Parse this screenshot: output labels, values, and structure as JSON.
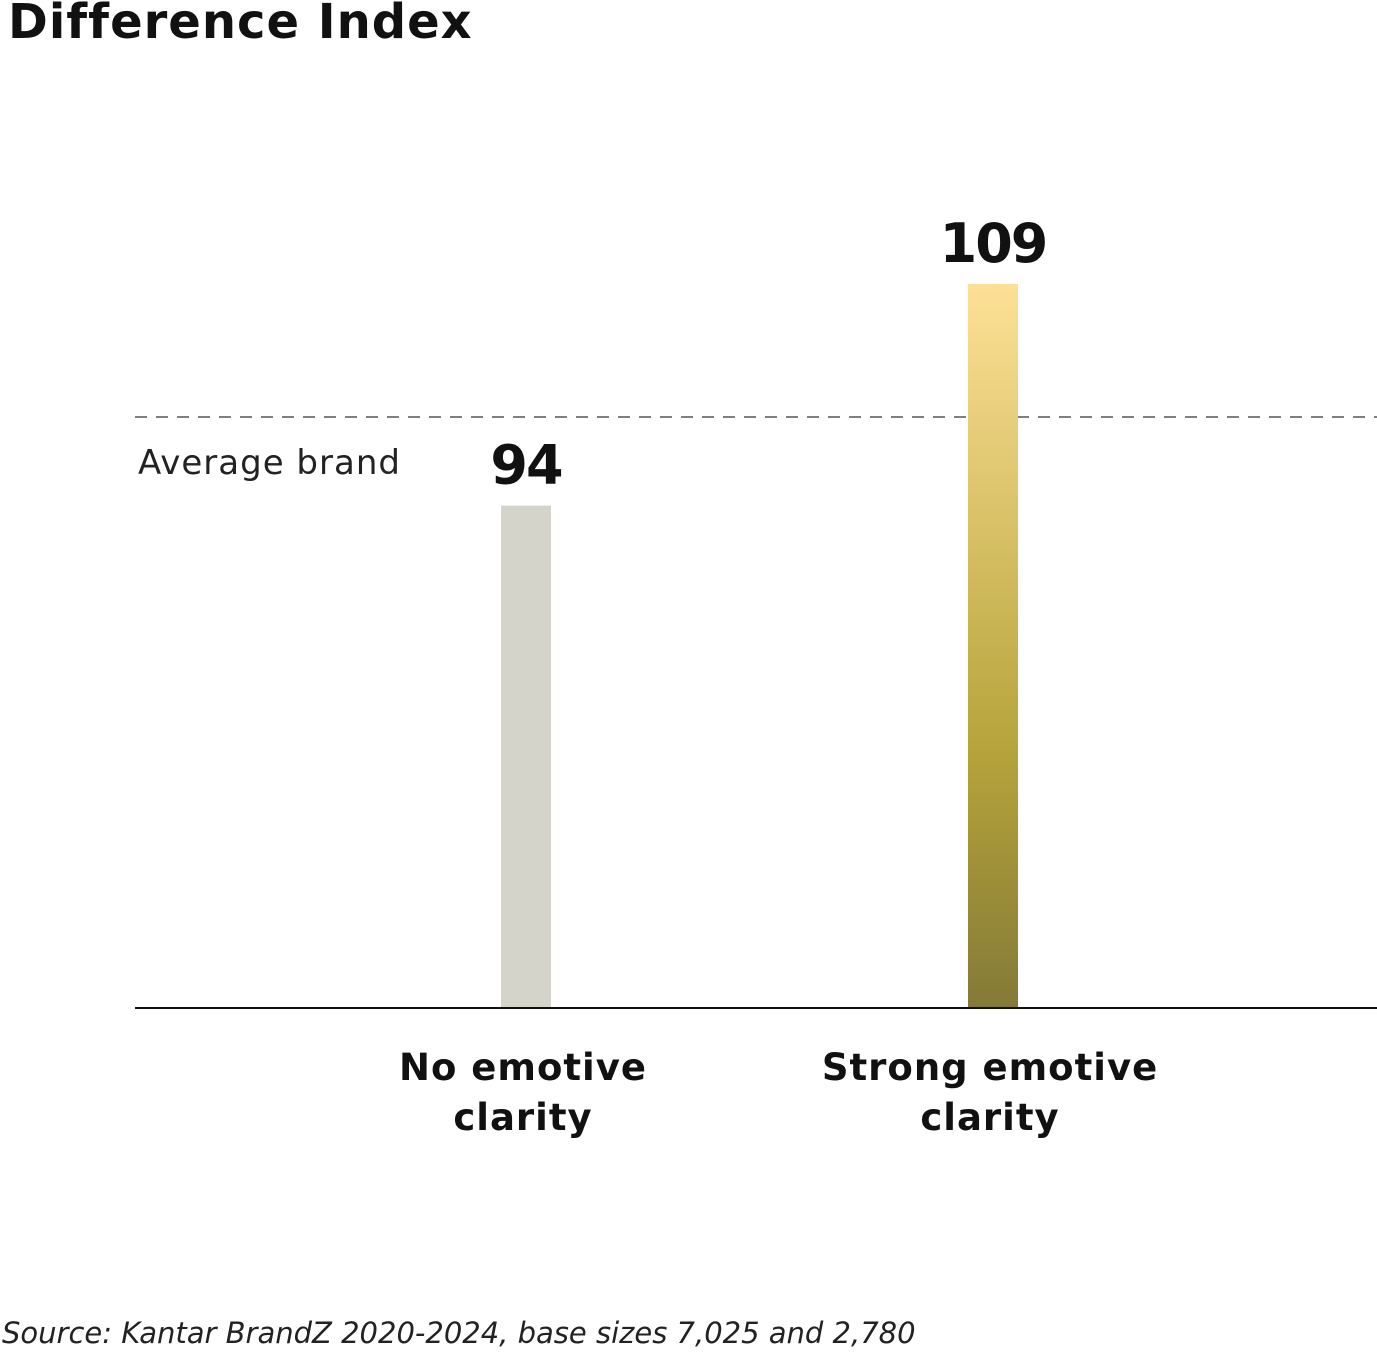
{
  "chart_data": {
    "type": "bar",
    "title": "Difference Index",
    "categories": [
      "No emotive clarity",
      "Strong emotive clarity"
    ],
    "category_lines": [
      [
        "No emotive",
        "clarity"
      ],
      [
        "Strong emotive",
        "clarity"
      ]
    ],
    "values": [
      94,
      109
    ],
    "data_labels": [
      "94",
      "109"
    ],
    "reference_line": {
      "label": "Average brand",
      "value": 100,
      "style": "dashed"
    },
    "ylim": [
      60,
      115
    ],
    "grid": false,
    "colors": {
      "bar_1": "#d4d4cb",
      "bar_2_gradient_top": "#fde096",
      "bar_2_gradient_middle": "#b5a33a",
      "bar_2_gradient_bottom": "#847a37",
      "axis": "#111111"
    },
    "source": "Source: Kantar BrandZ 2020-2024, base sizes 7,025 and 2,780"
  }
}
